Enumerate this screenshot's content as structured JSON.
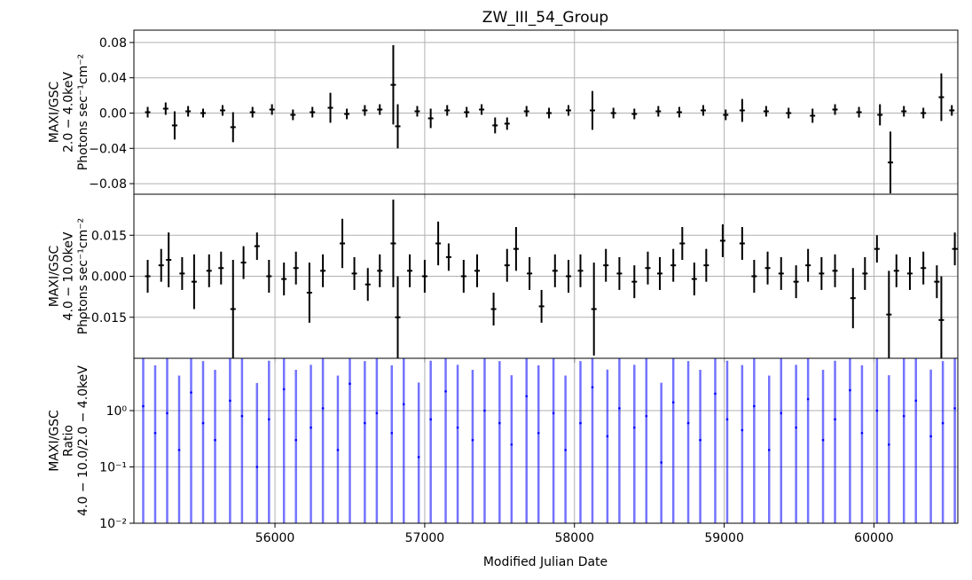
{
  "chart_data": {
    "type": "line",
    "title": "ZW_III_54_Group",
    "xlabel": "Modified Julian Date",
    "xlim": [
      55058,
      60560
    ],
    "xticks": [
      56000,
      57000,
      58000,
      59000,
      60000
    ],
    "xtick_labels": [
      "56000",
      "57000",
      "58000",
      "59000",
      "60000"
    ],
    "grid": true,
    "panels": [
      {
        "id": "soft",
        "ylabel_lines": [
          "MAXI/GSC",
          "2.0 − 4.0keV",
          "Photons sec⁻¹cm⁻²"
        ],
        "ylim": [
          -0.092,
          0.094
        ],
        "yscale": "linear",
        "yticks": [
          -0.08,
          -0.04,
          0.0,
          0.04,
          0.08
        ],
        "ytick_labels": [
          "−0.08",
          "−0.04",
          "0.00",
          "0.04",
          "0.08"
        ],
        "series": [
          {
            "style": "errorbar",
            "color": "#000000",
            "x": [
              55150,
              55270,
              55330,
              55420,
              55520,
              55650,
              55720,
              55850,
              55980,
              56120,
              56250,
              56370,
              56480,
              56600,
              56700,
              56790,
              56820,
              56950,
              57040,
              57150,
              57280,
              57380,
              57470,
              57550,
              57680,
              57830,
              57960,
              58120,
              58260,
              58400,
              58560,
              58700,
              58860,
              59010,
              59120,
              59280,
              59430,
              59590,
              59740,
              59900,
              60040,
              60110,
              60200,
              60330,
              60450,
              60520
            ],
            "y": [
              0.001,
              0.005,
              -0.014,
              0.002,
              0.0,
              0.003,
              -0.016,
              0.001,
              0.004,
              -0.002,
              0.001,
              0.006,
              -0.001,
              0.003,
              0.004,
              0.032,
              -0.015,
              0.002,
              -0.006,
              0.003,
              0.001,
              0.004,
              -0.014,
              -0.012,
              0.002,
              0.0,
              0.003,
              0.003,
              0.0,
              -0.001,
              0.002,
              0.001,
              0.003,
              -0.002,
              0.003,
              0.002,
              0.0,
              -0.003,
              0.004,
              0.001,
              -0.002,
              -0.056,
              0.002,
              0.0,
              0.018,
              0.003
            ],
            "yerr": [
              0.006,
              0.007,
              0.016,
              0.006,
              0.005,
              0.006,
              0.017,
              0.006,
              0.006,
              0.006,
              0.006,
              0.017,
              0.006,
              0.006,
              0.006,
              0.045,
              0.025,
              0.006,
              0.011,
              0.006,
              0.006,
              0.006,
              0.009,
              0.007,
              0.006,
              0.006,
              0.006,
              0.022,
              0.006,
              0.006,
              0.006,
              0.006,
              0.006,
              0.006,
              0.013,
              0.006,
              0.006,
              0.008,
              0.006,
              0.006,
              0.012,
              0.035,
              0.006,
              0.006,
              0.027,
              0.006
            ]
          }
        ]
      },
      {
        "id": "hard",
        "ylabel_lines": [
          "MAXI/GSC",
          "4.0 − 10.0keV",
          "Photons sec⁻¹cm⁻²"
        ],
        "ylim": [
          -0.03,
          0.03
        ],
        "yscale": "linear",
        "yticks": [
          -0.015,
          0.0,
          0.015
        ],
        "ytick_labels": [
          "−0.015",
          "0.000",
          "0.015"
        ],
        "series": [
          {
            "style": "errorbar",
            "color": "#000000",
            "x": [
              55150,
              55240,
              55290,
              55380,
              55460,
              55560,
              55640,
              55720,
              55790,
              55880,
              55960,
              56060,
              56140,
              56230,
              56320,
              56450,
              56530,
              56620,
              56700,
              56790,
              56820,
              56900,
              57000,
              57090,
              57160,
              57260,
              57350,
              57460,
              57550,
              57610,
              57700,
              57780,
              57870,
              57960,
              58040,
              58130,
              58210,
              58300,
              58400,
              58490,
              58570,
              58660,
              58720,
              58800,
              58880,
              58990,
              59120,
              59200,
              59290,
              59380,
              59480,
              59560,
              59650,
              59740,
              59860,
              59940,
              60020,
              60100,
              60150,
              60240,
              60330,
              60420,
              60450,
              60540
            ],
            "y": [
              0.0,
              0.004,
              0.006,
              0.001,
              -0.002,
              0.002,
              0.003,
              -0.012,
              0.005,
              0.011,
              0.0,
              -0.001,
              0.003,
              -0.006,
              0.002,
              0.012,
              0.001,
              -0.003,
              0.002,
              0.012,
              -0.015,
              0.002,
              0.0,
              0.012,
              0.007,
              0.0,
              0.002,
              -0.012,
              0.004,
              0.01,
              0.001,
              -0.011,
              0.002,
              0.0,
              0.002,
              -0.012,
              0.004,
              0.001,
              -0.002,
              0.003,
              0.001,
              0.004,
              0.012,
              -0.001,
              0.004,
              0.013,
              0.012,
              0.0,
              0.003,
              0.001,
              -0.002,
              0.004,
              0.001,
              0.002,
              -0.008,
              0.001,
              0.01,
              -0.014,
              0.002,
              0.001,
              0.003,
              -0.002,
              -0.016,
              0.01
            ],
            "yerr": [
              0.006,
              0.006,
              0.01,
              0.006,
              0.01,
              0.006,
              0.006,
              0.018,
              0.006,
              0.005,
              0.006,
              0.006,
              0.006,
              0.011,
              0.006,
              0.009,
              0.006,
              0.006,
              0.006,
              0.016,
              0.015,
              0.006,
              0.006,
              0.008,
              0.005,
              0.006,
              0.006,
              0.006,
              0.006,
              0.008,
              0.006,
              0.006,
              0.006,
              0.006,
              0.006,
              0.017,
              0.006,
              0.006,
              0.006,
              0.006,
              0.006,
              0.006,
              0.006,
              0.006,
              0.006,
              0.006,
              0.006,
              0.006,
              0.006,
              0.006,
              0.006,
              0.006,
              0.006,
              0.006,
              0.011,
              0.006,
              0.005,
              0.016,
              0.006,
              0.006,
              0.006,
              0.006,
              0.016,
              0.006
            ]
          }
        ]
      },
      {
        "id": "ratio",
        "ylabel_lines": [
          "MAXI/GSC",
          "Ratio",
          "4.0 − 10.0/2.0 − 4.0keV"
        ],
        "ylim": [
          0.01,
          8.5
        ],
        "yscale": "log",
        "yticks": [
          0.01,
          0.1,
          1.0
        ],
        "ytick_labels": [
          "10⁻²",
          "10⁻¹",
          "10⁰"
        ],
        "series": [
          {
            "style": "errorbar",
            "color": "#0000ff",
            "x": [
              55120,
              55200,
              55280,
              55360,
              55440,
              55520,
              55600,
              55700,
              55780,
              55880,
              55960,
              56060,
              56140,
              56240,
              56320,
              56420,
              56500,
              56600,
              56680,
              56780,
              56860,
              56960,
              57040,
              57140,
              57220,
              57320,
              57400,
              57500,
              57580,
              57680,
              57760,
              57860,
              57940,
              58040,
              58120,
              58220,
              58300,
              58400,
              58480,
              58580,
              58660,
              58760,
              58840,
              58940,
              59020,
              59120,
              59200,
              59300,
              59380,
              59480,
              59560,
              59660,
              59740,
              59840,
              59920,
              60020,
              60100,
              60200,
              60280,
              60380,
              60460,
              60540
            ],
            "y": [
              1.2,
              0.4,
              0.9,
              0.2,
              2.1,
              0.6,
              0.3,
              1.5,
              0.8,
              0.1,
              0.7,
              2.4,
              0.3,
              0.5,
              1.1,
              0.2,
              3.0,
              0.6,
              0.9,
              0.4,
              1.3,
              0.15,
              0.7,
              2.2,
              0.5,
              0.3,
              1.0,
              0.6,
              0.25,
              1.8,
              0.4,
              0.9,
              0.2,
              0.6,
              2.6,
              0.35,
              1.1,
              0.5,
              0.8,
              0.12,
              1.4,
              0.6,
              0.3,
              2.0,
              0.7,
              0.45,
              1.2,
              0.2,
              0.9,
              0.5,
              1.6,
              0.3,
              0.7,
              2.3,
              0.4,
              1.0,
              0.25,
              0.8,
              1.5,
              0.35,
              0.6,
              1.1
            ],
            "yerr_low": [
              1.19,
              0.39,
              0.89,
              0.19,
              2.09,
              0.59,
              0.29,
              1.49,
              0.79,
              0.09,
              0.69,
              2.39,
              0.29,
              0.49,
              1.09,
              0.19,
              2.99,
              0.59,
              0.89,
              0.39,
              1.29,
              0.14,
              0.69,
              2.19,
              0.49,
              0.29,
              0.99,
              0.59,
              0.24,
              1.79,
              0.39,
              0.89,
              0.19,
              0.59,
              2.59,
              0.34,
              1.09,
              0.49,
              0.79,
              0.11,
              1.39,
              0.59,
              0.29,
              1.99,
              0.69,
              0.44,
              1.19,
              0.19,
              0.89,
              0.49,
              1.59,
              0.29,
              0.69,
              2.29,
              0.39,
              0.99,
              0.24,
              0.79,
              1.49,
              0.34,
              0.59,
              1.09
            ],
            "yerr_high": [
              9,
              6,
              9,
              4,
              9,
              7,
              5,
              9,
              8,
              3,
              7,
              9,
              5,
              6,
              9,
              4,
              9,
              7,
              8,
              6,
              9,
              3,
              7,
              9,
              6,
              5,
              9,
              7,
              4,
              9,
              6,
              8,
              4,
              7,
              9,
              5,
              9,
              6,
              8,
              3,
              9,
              7,
              5,
              9,
              7,
              6,
              9,
              4,
              8,
              6,
              9,
              5,
              7,
              9,
              6,
              9,
              4,
              8,
              9,
              5,
              7,
              9
            ]
          }
        ]
      }
    ]
  }
}
